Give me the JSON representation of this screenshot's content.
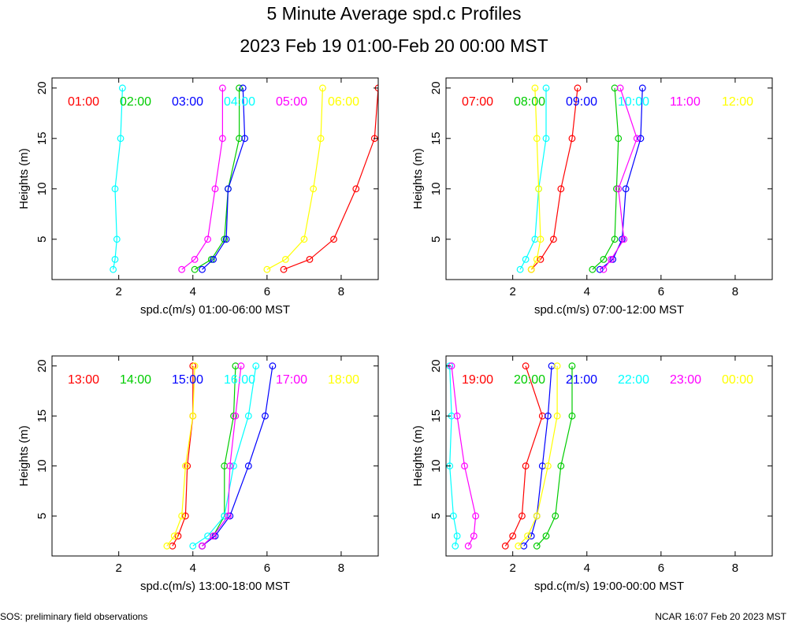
{
  "header": {
    "title": "5 Minute Average spd.c Profiles",
    "subtitle": "2023 Feb 19 01:00-Feb 20 00:00 MST"
  },
  "footer": {
    "left": "SOS: preliminary field observations",
    "right": "NCAR 16:07 Feb 20 2023 MST"
  },
  "colors": [
    "#ff0000",
    "#00cc00",
    "#0000ff",
    "#00ffff",
    "#ff00ff",
    "#ffff00"
  ],
  "chart_data": [
    {
      "type": "line",
      "xlabel": "spd.c(m/s) 01:00-06:00 MST",
      "ylabel": "Heights (m)",
      "xlim": [
        0.2,
        9.0
      ],
      "ylim": [
        1.0,
        21.0
      ],
      "xticks": [
        2,
        4,
        6,
        8
      ],
      "yticks": [
        5,
        10,
        15,
        20
      ],
      "heights": [
        2,
        3,
        5,
        10,
        15,
        20
      ],
      "series": [
        {
          "name": "01:00",
          "values": [
            6.45,
            7.15,
            7.8,
            8.4,
            8.9,
            9.0
          ]
        },
        {
          "name": "02:00",
          "values": [
            4.05,
            4.5,
            4.85,
            4.95,
            5.25,
            5.25
          ]
        },
        {
          "name": "03:00",
          "values": [
            4.25,
            4.55,
            4.9,
            4.95,
            5.4,
            5.35
          ]
        },
        {
          "name": "04:00",
          "values": [
            1.85,
            1.9,
            1.95,
            1.9,
            2.05,
            2.1
          ]
        },
        {
          "name": "05:00",
          "values": [
            3.7,
            4.05,
            4.4,
            4.6,
            4.8,
            4.8
          ]
        },
        {
          "name": "06:00",
          "values": [
            6.0,
            6.5,
            7.0,
            7.25,
            7.45,
            7.5
          ]
        }
      ]
    },
    {
      "type": "line",
      "xlabel": "spd.c(m/s) 07:00-12:00 MST",
      "ylabel": "Heights (m)",
      "xlim": [
        0.2,
        9.0
      ],
      "ylim": [
        1.0,
        21.0
      ],
      "xticks": [
        2,
        4,
        6,
        8
      ],
      "yticks": [
        5,
        10,
        15,
        20
      ],
      "heights": [
        2,
        3,
        5,
        10,
        15,
        20
      ],
      "series": [
        {
          "name": "07:00",
          "values": [
            2.5,
            2.75,
            3.1,
            3.3,
            3.6,
            3.75
          ]
        },
        {
          "name": "08:00",
          "values": [
            4.15,
            4.45,
            4.75,
            4.8,
            4.85,
            4.75
          ]
        },
        {
          "name": "09:00",
          "values": [
            4.35,
            4.7,
            4.95,
            5.05,
            5.45,
            5.5
          ]
        },
        {
          "name": "10:00",
          "values": [
            2.2,
            2.35,
            2.6,
            2.7,
            2.9,
            2.9
          ]
        },
        {
          "name": "11:00",
          "values": [
            4.45,
            4.65,
            5.0,
            4.85,
            5.35,
            4.9
          ]
        },
        {
          "name": "12:00",
          "values": [
            2.5,
            2.65,
            2.75,
            2.7,
            2.65,
            2.6
          ]
        }
      ]
    },
    {
      "type": "line",
      "xlabel": "spd.c(m/s) 13:00-18:00 MST",
      "ylabel": "Heights (m)",
      "xlim": [
        0.2,
        9.0
      ],
      "ylim": [
        1.0,
        21.0
      ],
      "xticks": [
        2,
        4,
        6,
        8
      ],
      "yticks": [
        5,
        10,
        15,
        20
      ],
      "heights": [
        2,
        3,
        5,
        10,
        15,
        20
      ],
      "series": [
        {
          "name": "13:00",
          "values": [
            3.45,
            3.6,
            3.8,
            3.85,
            4.0,
            4.0
          ]
        },
        {
          "name": "14:00",
          "values": [
            4.25,
            4.55,
            4.85,
            4.85,
            5.1,
            5.15
          ]
        },
        {
          "name": "15:00",
          "values": [
            4.25,
            4.6,
            5.0,
            5.5,
            5.95,
            6.15
          ]
        },
        {
          "name": "16:00",
          "values": [
            4.0,
            4.4,
            4.85,
            5.1,
            5.5,
            5.7
          ]
        },
        {
          "name": "17:00",
          "values": [
            4.25,
            4.55,
            4.95,
            5.0,
            5.15,
            5.3
          ]
        },
        {
          "name": "18:00",
          "values": [
            3.3,
            3.5,
            3.7,
            3.8,
            4.0,
            4.05
          ]
        }
      ]
    },
    {
      "type": "line",
      "xlabel": "spd.c(m/s) 19:00-00:00 MST",
      "ylabel": "Heights (m)",
      "xlim": [
        0.2,
        9.0
      ],
      "ylim": [
        1.0,
        21.0
      ],
      "xticks": [
        2,
        4,
        6,
        8
      ],
      "yticks": [
        5,
        10,
        15,
        20
      ],
      "heights": [
        2,
        3,
        5,
        10,
        15,
        20
      ],
      "series": [
        {
          "name": "19:00",
          "values": [
            1.8,
            2.0,
            2.25,
            2.35,
            2.8,
            2.35
          ]
        },
        {
          "name": "20:00",
          "values": [
            2.65,
            2.9,
            3.15,
            3.3,
            3.6,
            3.6
          ]
        },
        {
          "name": "21:00",
          "values": [
            2.3,
            2.5,
            2.65,
            2.8,
            2.95,
            3.05
          ]
        },
        {
          "name": "22:00",
          "values": [
            0.45,
            0.5,
            0.4,
            0.3,
            0.35,
            0.3
          ]
        },
        {
          "name": "23:00",
          "values": [
            0.8,
            0.95,
            1.0,
            0.7,
            0.5,
            0.35
          ]
        },
        {
          "name": "00:00",
          "values": [
            2.15,
            2.4,
            2.65,
            2.95,
            3.2,
            3.2
          ]
        }
      ]
    }
  ]
}
